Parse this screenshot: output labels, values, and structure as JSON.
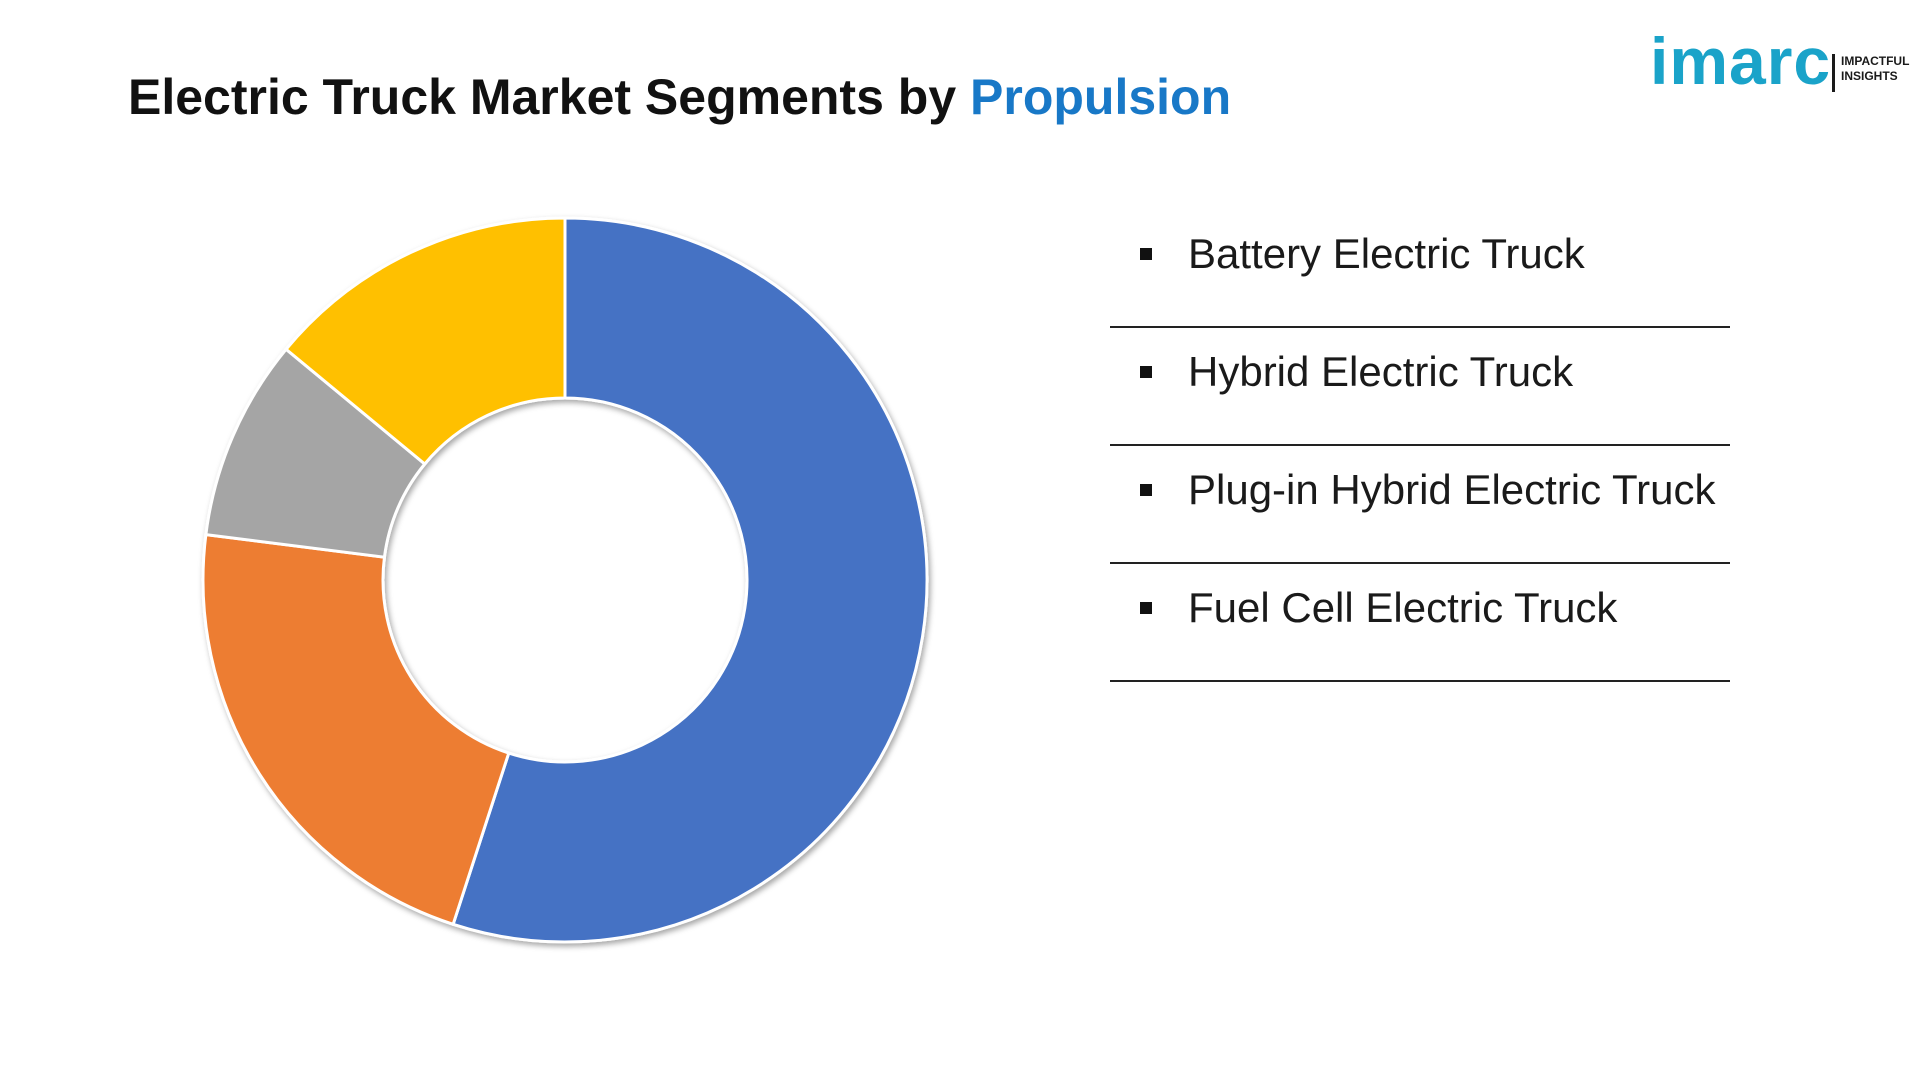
{
  "header": {
    "title_main": "Electric Truck Market Segments by ",
    "title_accent": "Propulsion"
  },
  "logo": {
    "wordmark": "imarc",
    "tagline_line1": "IMPACTFUL",
    "tagline_line2": "INSIGHTS"
  },
  "colors": {
    "accent": "#1878c7",
    "logo": "#1aa3c9"
  },
  "chart_data": {
    "type": "pie",
    "subtype": "donut",
    "title": "Electric Truck Market Segments by Propulsion",
    "legend_position": "right",
    "categories": [
      "Battery Electric Truck",
      "Hybrid Electric Truck",
      "Plug-in Hybrid Electric Truck",
      "Fuel Cell Electric Truck"
    ],
    "slices": [
      {
        "label": "Battery Electric Truck",
        "value": 55,
        "color": "#4472c4"
      },
      {
        "label": "Hybrid Electric Truck",
        "value": 22,
        "color": "#ed7d31"
      },
      {
        "label": "Plug-in Hybrid Electric Truck",
        "value": 9,
        "color": "#a5a5a5"
      },
      {
        "label": "Fuel Cell Electric Truck",
        "value": 14,
        "color": "#ffc000"
      }
    ]
  }
}
